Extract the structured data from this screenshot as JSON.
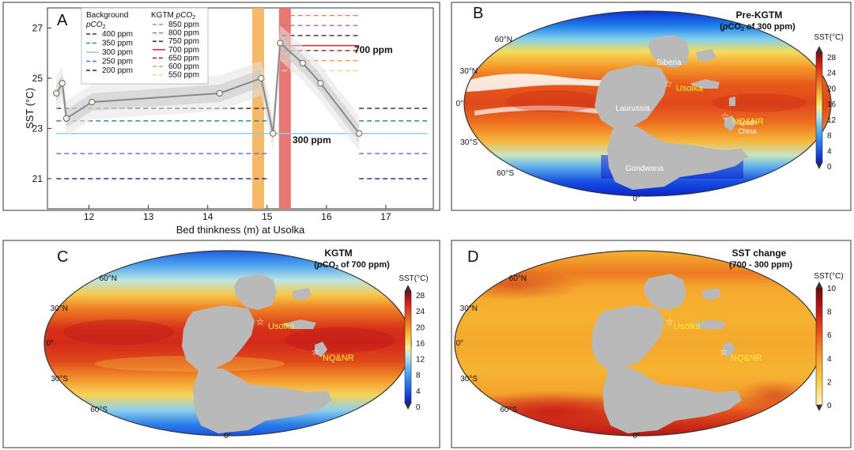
{
  "panel_letters": {
    "a": "A",
    "b": "B",
    "c": "C",
    "d": "D"
  },
  "chart_data": [
    {
      "type": "line",
      "panel": "A",
      "xlabel": "Bed thinkness (m) at Usolka",
      "ylabel": "SST (°C)",
      "xlim": [
        11.3,
        17.8
      ],
      "ylim": [
        19.8,
        27.8
      ],
      "xticks": [
        "12",
        "13",
        "14",
        "15",
        "16",
        "17"
      ],
      "yticks": [
        "21",
        "23",
        "25",
        "27"
      ],
      "series": [
        {
          "x": [
            11.45,
            11.55,
            11.62,
            12.05,
            14.2,
            14.9,
            15.1,
            15.22,
            15.6,
            15.9,
            16.55
          ],
          "y": [
            24.4,
            24.8,
            23.4,
            24.05,
            24.4,
            25.0,
            22.8,
            26.4,
            25.6,
            24.8,
            22.8
          ]
        }
      ],
      "bands": [
        {
          "x": [
            14.75,
            14.95
          ],
          "color": "#f4b560"
        },
        {
          "x": [
            15.2,
            15.4
          ],
          "color": "#e8706c"
        }
      ],
      "annotations": [
        {
          "text": "700 ppm",
          "x": 15.9,
          "y": 26.0
        },
        {
          "text": "300 ppm",
          "x": 15.35,
          "y": 22.75
        }
      ],
      "legend": {
        "background_title": "Background",
        "pco2_label": "pCO",
        "pco2_sub": "2",
        "background": [
          {
            "label": "400 ppm",
            "color": "#3a3a3a",
            "value": 23.8
          },
          {
            "label": "350 ppm",
            "color": "#2e8b8b",
            "value": 23.3
          },
          {
            "label": "300 ppm",
            "color": "#8ecde6",
            "value": 22.8
          },
          {
            "label": "250 ppm",
            "color": "#5a6fd0",
            "value": 22.0
          },
          {
            "label": "200 ppm",
            "color": "#1a237e",
            "value": 21.0
          }
        ],
        "kgtm_title_prefix": "KGTM ",
        "kgtm_title_pco": "pCO",
        "kgtm_title_sub": "2",
        "kgtm": [
          {
            "label": "850 ppm",
            "color": "#f07f5c",
            "value": 27.5
          },
          {
            "label": "800 ppm",
            "color": "#c56a9b",
            "value": 27.1
          },
          {
            "label": "750 ppm",
            "color": "#5a1e1e",
            "value": 26.7
          },
          {
            "label": "700 ppm",
            "color": "#e02020",
            "value": 26.3
          },
          {
            "label": "650 ppm",
            "color": "#a01a2a",
            "value": 26.1
          },
          {
            "label": "600 ppm",
            "color": "#f0a040",
            "value": 25.7
          },
          {
            "label": "550 ppm",
            "color": "#e8d8a0",
            "value": 25.3
          }
        ]
      }
    },
    {
      "type": "heatmap",
      "panel": "B",
      "title": "Pre-KGTM",
      "subtitle_parts": [
        "(",
        "p",
        "CO",
        "2",
        " of 300 ppm)"
      ],
      "colorbar_label": "SST(°C)",
      "colorbar_ticks": [
        "28",
        "24",
        "20",
        "16",
        "12",
        "8",
        "4",
        "0"
      ],
      "lat_labels": [
        "60°N",
        "30°N",
        "0°",
        "30°S",
        "60°S"
      ],
      "lon_label": "0°",
      "place_labels": [
        "Siberia",
        "Laurussia",
        "South",
        "China",
        "Gondwana"
      ],
      "sites": [
        "Usolka",
        "NQ&NR"
      ]
    },
    {
      "type": "heatmap",
      "panel": "C",
      "title": "KGTM",
      "subtitle_parts": [
        "(",
        "p",
        "CO",
        "2",
        " of 700 ppm)"
      ],
      "colorbar_label": "SST(°C)",
      "colorbar_ticks": [
        "28",
        "24",
        "20",
        "16",
        "12",
        "8",
        "4",
        "0"
      ],
      "lat_labels": [
        "60°N",
        "30°N",
        "0°",
        "30°S",
        "60°S"
      ],
      "lon_label": "0°",
      "sites": [
        "Usolka",
        "NQ&NR"
      ]
    },
    {
      "type": "heatmap",
      "panel": "D",
      "title": "SST change",
      "subtitle": "(700 - 300 ppm)",
      "colorbar_label": "SST(°C)",
      "colorbar_ticks": [
        "10",
        "8",
        "6",
        "4",
        "2",
        "0"
      ],
      "lat_labels": [
        "60°N",
        "30°N",
        "0°",
        "30°S",
        "60°S"
      ],
      "lon_label": "0°",
      "sites": [
        "Usolka",
        "NQ&NR"
      ]
    }
  ]
}
